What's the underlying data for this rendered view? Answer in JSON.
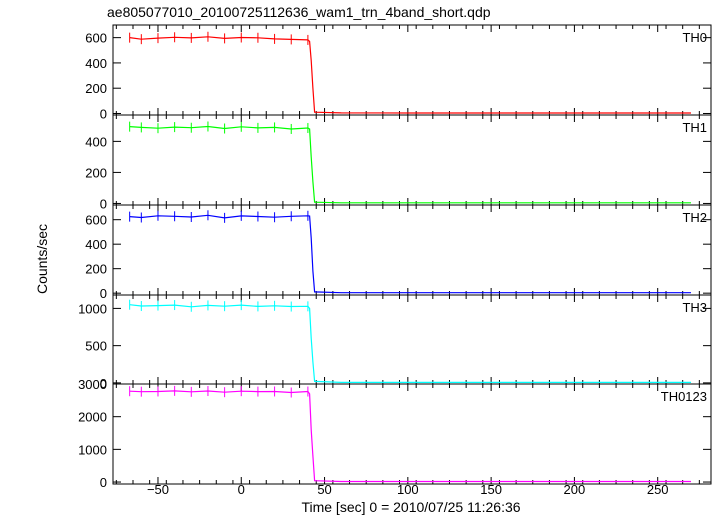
{
  "chart_data": {
    "type": "line",
    "title": "ae805077010_20100725112636_wam1_trn_4band_short.qdp",
    "xlabel": "Time [sec] 0 = 2010/07/25 11:26:36",
    "ylabel": "Counts/sec",
    "xlim": [
      -77,
      282
    ],
    "x_ticks": [
      -50,
      0,
      50,
      100,
      150,
      200,
      250
    ],
    "x_tick_labels": [
      "−50",
      "0",
      "50",
      "100",
      "150",
      "200",
      "250"
    ],
    "grid": false,
    "error_bars": true,
    "panels": [
      {
        "name": "TH0",
        "color": "#ff0000",
        "ylim": [
          -12,
          700
        ],
        "yticks": [
          0,
          200,
          400,
          600
        ],
        "series": [
          {
            "x": [
              -67,
              -60,
              -50,
              -40,
              -30,
              -20,
              -10,
              0,
              10,
              20,
              30,
              40,
              41,
              42,
              43,
              44,
              60,
              100,
              150,
              200,
              250,
              270
            ],
            "y": [
              600,
              588,
              596,
              603,
              598,
              607,
              594,
              601,
              599,
              590,
              586,
              582,
              570,
              420,
              200,
              10,
              5,
              4,
              4,
              4,
              4,
              4
            ]
          }
        ]
      },
      {
        "name": "TH1",
        "color": "#00ff00",
        "ylim": [
          -10,
          570
        ],
        "yticks": [
          0,
          200,
          400
        ],
        "series": [
          {
            "x": [
              -67,
              -60,
              -50,
              -40,
              -30,
              -20,
              -10,
              0,
              10,
              20,
              30,
              40,
              41,
              42,
              43,
              44,
              60,
              100,
              150,
              200,
              250,
              270
            ],
            "y": [
              495,
              490,
              485,
              492,
              488,
              496,
              483,
              494,
              487,
              490,
              480,
              486,
              480,
              300,
              140,
              8,
              4,
              4,
              4,
              4,
              4,
              4
            ]
          }
        ]
      },
      {
        "name": "TH2",
        "color": "#0000ff",
        "ylim": [
          -15,
          720
        ],
        "yticks": [
          0,
          200,
          400,
          600
        ],
        "series": [
          {
            "x": [
              -67,
              -60,
              -50,
              -40,
              -30,
              -20,
              -10,
              0,
              10,
              20,
              30,
              40,
              41,
              42,
              43,
              44,
              60,
              100,
              150,
              200,
              250,
              270
            ],
            "y": [
              625,
              618,
              632,
              628,
              622,
              636,
              615,
              631,
              626,
              620,
              628,
              632,
              630,
              450,
              180,
              10,
              4,
              4,
              4,
              4,
              4,
              4
            ]
          }
        ]
      },
      {
        "name": "TH3",
        "color": "#00ffff",
        "ylim": [
          -15,
          1180
        ],
        "yticks": [
          0,
          500,
          1000
        ],
        "series": [
          {
            "x": [
              -67,
              -60,
              -50,
              -40,
              -30,
              -20,
              -10,
              0,
              10,
              20,
              30,
              40,
              41,
              42,
              43,
              44,
              60,
              100,
              150,
              200,
              250,
              270
            ],
            "y": [
              1050,
              1032,
              1038,
              1045,
              1022,
              1040,
              1030,
              1044,
              1027,
              1035,
              1025,
              1028,
              1000,
              600,
              280,
              20,
              6,
              6,
              6,
              6,
              6,
              6
            ]
          }
        ]
      },
      {
        "name": "TH0123",
        "color": "#ff00ff",
        "ylim": [
          -60,
          3000
        ],
        "yticks": [
          0,
          1000,
          2000,
          3000
        ],
        "series": [
          {
            "x": [
              -67,
              -60,
              -50,
              -40,
              -30,
              -20,
              -10,
              0,
              10,
              20,
              30,
              40,
              41,
              42,
              43,
              44,
              60,
              100,
              150,
              200,
              250,
              270
            ],
            "y": [
              2780,
              2765,
              2772,
              2790,
              2760,
              2785,
              2750,
              2780,
              2768,
              2772,
              2740,
              2770,
              2700,
              1600,
              800,
              40,
              18,
              18,
              18,
              18,
              18,
              18
            ]
          }
        ]
      }
    ]
  }
}
